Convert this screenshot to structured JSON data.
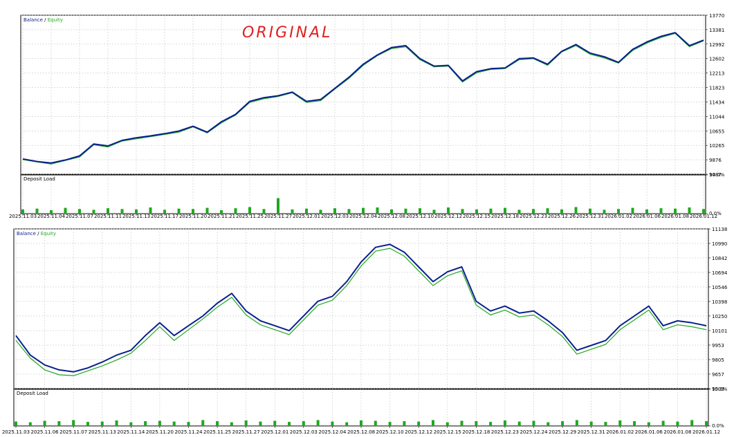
{
  "chart_data": [
    {
      "type": "line",
      "annotation": "ORIGINAL",
      "legend_separator": "/",
      "categories": [
        "2025.11.03",
        null,
        "2025.11.04",
        null,
        "2025.11.07",
        null,
        "2025.11.11",
        null,
        "2025.11.13",
        null,
        "2025.11.17",
        null,
        "2025.11.20",
        null,
        "2025.11.21",
        null,
        "2025.11.25",
        null,
        "2025.11.27",
        null,
        "2025.12.01",
        null,
        "2025.12.03",
        null,
        "2025.12.04",
        null,
        "2025.12.08",
        null,
        "2025.12.10",
        null,
        "2025.12.12",
        null,
        "2025.12.15",
        null,
        "2025.12.18",
        null,
        "2025.12.23",
        null,
        "2025.12.26",
        null,
        "2025.12.31",
        null,
        "2026.01.02",
        null,
        "2026.01.06",
        null,
        "2026.01.08",
        null,
        "2026.01.12"
      ],
      "series": [
        {
          "name": "Balance",
          "color": "#0a1f8f",
          "values": [
            9900,
            9830,
            9790,
            9870,
            9980,
            10300,
            10250,
            10400,
            10470,
            10520,
            10580,
            10650,
            10780,
            10620,
            10900,
            11100,
            11450,
            11550,
            11600,
            11700,
            11450,
            11500,
            11800,
            12100,
            12450,
            12700,
            12900,
            12950,
            12600,
            12400,
            12420,
            12000,
            12250,
            12330,
            12350,
            12600,
            12620,
            12450,
            12800,
            12980,
            12750,
            12650,
            12500,
            12850,
            13050,
            13200,
            13300,
            12950,
            13100
          ]
        },
        {
          "name": "Equity",
          "color": "#1fa81f",
          "values": [
            9880,
            9820,
            9760,
            9860,
            9950,
            10280,
            10220,
            10380,
            10440,
            10500,
            10560,
            10620,
            10760,
            10600,
            10870,
            11080,
            11420,
            11520,
            11580,
            11680,
            11420,
            11470,
            11780,
            12070,
            12420,
            12680,
            12870,
            12920,
            12570,
            12380,
            12400,
            11970,
            12220,
            12310,
            12330,
            12570,
            12600,
            12420,
            12780,
            12950,
            12720,
            12620,
            12480,
            12820,
            13020,
            13170,
            13280,
            12920,
            13080
          ]
        }
      ],
      "ylim": [
        9487,
        13770
      ],
      "yticks": [
        9487,
        9876,
        10265,
        10655,
        11044,
        11434,
        11823,
        12213,
        12602,
        12992,
        13381,
        13770
      ],
      "grid": true,
      "deposit_load": {
        "title": "Deposit Load",
        "color": "#1fa81f",
        "ylim": [
          0,
          10
        ],
        "yticks": [
          {
            "value": 0,
            "label": "0.0%"
          },
          {
            "value": 10,
            "label": "10.0%"
          }
        ],
        "values": [
          1.1,
          1.3,
          0.9,
          1.5,
          1.2,
          1.0,
          1.4,
          1.2,
          1.1,
          1.6,
          1.0,
          1.3,
          1.2,
          1.5,
          0.9,
          1.4,
          1.7,
          1.2,
          4.0,
          1.1,
          1.3,
          1.0,
          1.4,
          1.2,
          1.5,
          1.6,
          1.1,
          1.3,
          1.4,
          1.0,
          1.6,
          1.2,
          1.1,
          1.3,
          1.5,
          1.0,
          1.2,
          1.4,
          1.1,
          1.7,
          1.3,
          1.0,
          1.2,
          1.5,
          1.1,
          1.4,
          1.3,
          1.6,
          1.2
        ]
      }
    },
    {
      "type": "line",
      "legend_separator": "/",
      "categories": [
        "2025.11.03",
        null,
        "2025.11.06",
        null,
        "2025.11.07",
        null,
        "2025.11.13",
        null,
        "2025.11.14",
        null,
        "2025.11.20",
        null,
        "2025.11.24",
        null,
        "2025.11.25",
        null,
        "2025.11.27",
        null,
        "2025.12.01",
        null,
        "2025.12.03",
        null,
        "2025.12.04",
        null,
        "2025.12.08",
        null,
        "2025.12.10",
        null,
        "2025.12.12",
        null,
        "2025.12.15",
        null,
        "2025.12.18",
        null,
        "2025.12.23",
        null,
        "2025.12.24",
        null,
        "2025.12.29",
        null,
        "2025.12.31",
        null,
        "2026.01.02",
        null,
        "2026.01.06",
        null,
        "2026.01.08",
        null,
        "2026.01.12"
      ],
      "series": [
        {
          "name": "Balance",
          "color": "#0a1f8f",
          "values": [
            10050,
            9850,
            9750,
            9700,
            9680,
            9720,
            9780,
            9850,
            9900,
            10050,
            10180,
            10050,
            10150,
            10250,
            10380,
            10480,
            10300,
            10200,
            10150,
            10100,
            10250,
            10400,
            10450,
            10600,
            10800,
            10950,
            10980,
            10900,
            10750,
            10600,
            10700,
            10750,
            10400,
            10300,
            10350,
            10280,
            10300,
            10200,
            10080,
            9900,
            9950,
            10000,
            10150,
            10250,
            10350,
            10150,
            10200,
            10180,
            10150
          ]
        },
        {
          "name": "Equity",
          "color": "#1fa81f",
          "values": [
            10000,
            9820,
            9700,
            9650,
            9640,
            9690,
            9740,
            9800,
            9870,
            10000,
            10140,
            10000,
            10110,
            10220,
            10340,
            10440,
            10260,
            10160,
            10110,
            10060,
            10210,
            10360,
            10410,
            10560,
            10760,
            10910,
            10940,
            10860,
            10710,
            10560,
            10660,
            10710,
            10360,
            10260,
            10310,
            10240,
            10260,
            10160,
            10040,
            9860,
            9910,
            9960,
            10110,
            10210,
            10310,
            10110,
            10160,
            10140,
            10110
          ]
        }
      ],
      "ylim": [
        9509,
        11138
      ],
      "yticks": [
        9509,
        9657,
        9805,
        9953,
        10101,
        10250,
        10398,
        10546,
        10694,
        10842,
        10990,
        11138
      ],
      "grid": true,
      "deposit_load": {
        "title": "Deposit Load",
        "color": "#1fa81f",
        "ylim": [
          0,
          10
        ],
        "yticks": [
          {
            "value": 0,
            "label": "0.0%"
          },
          {
            "value": 10,
            "label": "10.0%"
          }
        ],
        "values": [
          1.2,
          1.0,
          1.4,
          1.3,
          1.6,
          1.1,
          1.2,
          1.5,
          1.0,
          1.3,
          1.4,
          1.2,
          1.1,
          1.6,
          1.3,
          1.0,
          1.5,
          1.2,
          1.4,
          1.1,
          1.3,
          1.6,
          1.2,
          1.0,
          1.5,
          1.4,
          1.1,
          1.3,
          1.2,
          1.6,
          1.0,
          1.4,
          1.3,
          1.1,
          1.5,
          1.2,
          1.4,
          1.0,
          1.3,
          1.6,
          1.2,
          1.1,
          1.5,
          1.3,
          1.0,
          1.4,
          1.2,
          1.6,
          1.3
        ]
      }
    }
  ]
}
